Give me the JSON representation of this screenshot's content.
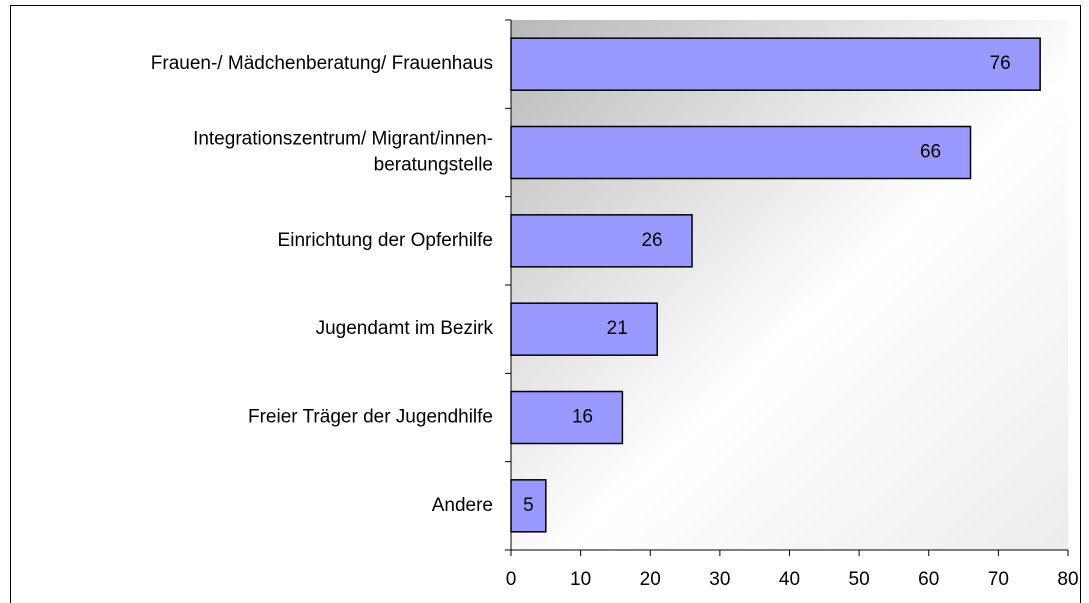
{
  "chart_data": {
    "type": "hbar",
    "categories": [
      "Frauen-/ Mädchenberatung/ Frauenhaus",
      "Integrationszentrum/ Migrant/innen-\nberatungstelle",
      "Einrichtung der Opferhilfe",
      "Jugendamt im Bezirk",
      "Freier Träger der Jugendhilfe",
      "Andere"
    ],
    "values": [
      76,
      66,
      26,
      21,
      16,
      5
    ],
    "color": "#9999ff",
    "xlim": [
      0,
      80
    ],
    "xticks": [
      0,
      10,
      20,
      30,
      40,
      50,
      60,
      70,
      80
    ]
  }
}
